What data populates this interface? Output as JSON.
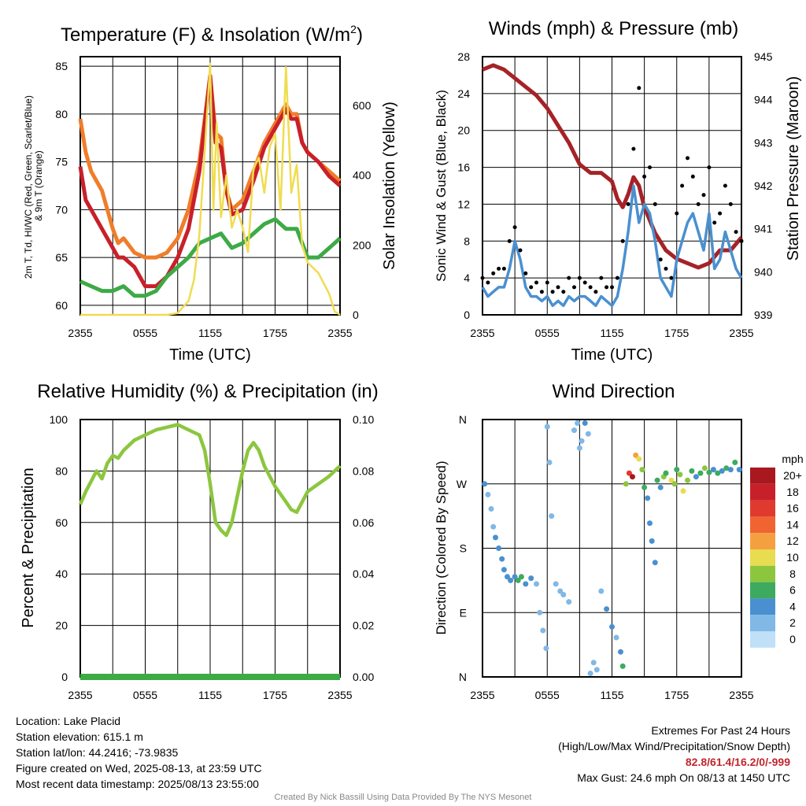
{
  "chart_data": [
    {
      "type": "line",
      "title": "Temperature (F) & Insolation (W/m²)",
      "xlabel": "Time (UTC)",
      "ylabel": "2m T, Td, HI/WC (Red, Green, Scarlet/Blue) & 9m T (Orange)",
      "y2label": "Solar Insolation (Yellow)",
      "xticks": [
        "2355",
        "0555",
        "1155",
        "1755",
        "2355"
      ],
      "ylim": [
        59,
        86
      ],
      "yticks": [
        60,
        65,
        70,
        75,
        80,
        85
      ],
      "y2lim": [
        0,
        740
      ],
      "y2ticks": [
        0,
        200,
        400,
        600
      ],
      "grid": true,
      "series": [
        {
          "color": "#f07d2a",
          "axis": "left",
          "x": [
            0,
            0.5,
            1,
            2,
            3,
            3.5,
            4,
            5,
            6,
            7,
            8,
            9,
            10,
            11,
            12,
            12.5,
            13,
            13.5,
            14,
            15,
            16,
            17,
            18,
            18.5,
            19,
            19.5,
            20,
            20.5,
            21,
            22,
            23,
            24
          ],
          "values": [
            79.5,
            76,
            74,
            72,
            68,
            66.5,
            67,
            65.5,
            65,
            65,
            65.5,
            67,
            70,
            75,
            84,
            78,
            77.5,
            72,
            70,
            71,
            74,
            77,
            79,
            80,
            81,
            80,
            80,
            77,
            76,
            75,
            74,
            73
          ]
        },
        {
          "color": "#c8202a",
          "axis": "left",
          "x": [
            0,
            0.5,
            1,
            2,
            3,
            3.5,
            4,
            5,
            6,
            7,
            8,
            9,
            10,
            11,
            12,
            12.5,
            13,
            13.5,
            14,
            15,
            16,
            17,
            18,
            18.5,
            19,
            19.5,
            20,
            20.5,
            21,
            22,
            23,
            24
          ],
          "values": [
            74.5,
            71,
            70,
            68,
            66,
            65,
            65,
            64,
            62,
            62,
            63,
            65,
            68,
            74,
            84,
            77,
            76.5,
            72,
            69.5,
            70,
            73,
            76.5,
            78.5,
            79.5,
            80.5,
            79.5,
            79.5,
            77,
            76,
            75,
            73.5,
            72.5
          ]
        },
        {
          "color": "#3daa46",
          "axis": "left",
          "x": [
            0,
            1,
            2,
            3,
            4,
            5,
            6,
            7,
            8,
            9,
            10,
            11,
            12,
            13,
            14,
            15,
            16,
            17,
            18,
            18.5,
            19,
            20,
            21,
            22,
            23,
            24
          ],
          "values": [
            62.5,
            62,
            61.5,
            61.5,
            62,
            61,
            61,
            61.5,
            63,
            64,
            65,
            66.5,
            67,
            67.5,
            66,
            66.5,
            67.5,
            68.5,
            69,
            68.5,
            68,
            68,
            65,
            65,
            66,
            67
          ]
        },
        {
          "color": "#f0dc50",
          "axis": "right",
          "x": [
            0,
            6,
            8,
            9,
            10,
            10.5,
            11,
            11.5,
            12,
            12.3,
            12.6,
            13,
            13.5,
            14,
            14.5,
            15,
            15.5,
            16,
            16.5,
            17,
            17.5,
            18,
            18.5,
            19,
            19.5,
            20,
            20.5,
            21,
            22,
            23,
            23.5,
            24
          ],
          "values": [
            0,
            0,
            0,
            5,
            40,
            100,
            230,
            470,
            720,
            300,
            550,
            280,
            400,
            250,
            300,
            250,
            180,
            420,
            450,
            350,
            480,
            520,
            300,
            710,
            350,
            430,
            200,
            150,
            120,
            60,
            10,
            0
          ]
        }
      ]
    },
    {
      "type": "line",
      "title": "Winds (mph) & Pressure (mb)",
      "xlabel": "Time (UTC)",
      "ylabel": "Sonic Wind & Gust (Blue, Black)",
      "y2label": "Station Pressure (Maroon)",
      "xticks": [
        "2355",
        "0555",
        "1155",
        "1755",
        "2355"
      ],
      "ylim": [
        0,
        28
      ],
      "yticks": [
        0,
        4,
        8,
        12,
        16,
        20,
        24,
        28
      ],
      "y2lim": [
        939,
        945
      ],
      "y2ticks": [
        939,
        940,
        941,
        942,
        943,
        944,
        945
      ],
      "grid": true,
      "series": [
        {
          "color": "#a52226",
          "axis": "right",
          "x": [
            0,
            1,
            2,
            3,
            4,
            5,
            6,
            7,
            8,
            9,
            10,
            11,
            12,
            12.5,
            13,
            13.5,
            14,
            14.5,
            15,
            16,
            17,
            18,
            19,
            20,
            21,
            22,
            23,
            24
          ],
          "values": [
            944.7,
            944.8,
            944.7,
            944.5,
            944.3,
            944.1,
            943.8,
            943.4,
            943.0,
            942.5,
            942.3,
            942.3,
            942.1,
            941.7,
            941.5,
            941.8,
            942.2,
            942.0,
            941.5,
            940.9,
            940.5,
            940.3,
            940.2,
            940.1,
            940.2,
            940.5,
            940.5,
            940.8
          ]
        },
        {
          "color": "#4a90d0",
          "axis": "left",
          "x": [
            0,
            0.5,
            1,
            1.5,
            2,
            2.5,
            3,
            3.5,
            4,
            4.5,
            5,
            5.5,
            6,
            6.5,
            7,
            7.5,
            8,
            8.5,
            9,
            9.5,
            10,
            10.5,
            11,
            11.5,
            12,
            12.5,
            13,
            13.5,
            14,
            14.5,
            15,
            15.5,
            16,
            16.5,
            17,
            17.5,
            18,
            18.5,
            19,
            19.5,
            20,
            20.5,
            21,
            21.5,
            22,
            22.5,
            23,
            23.5,
            24
          ],
          "values": [
            3,
            2,
            2.5,
            3,
            3,
            5,
            8,
            6,
            3,
            2,
            2,
            1.5,
            2,
            1,
            1.5,
            1,
            2,
            1.5,
            2,
            2,
            1.5,
            1,
            2,
            1.5,
            1,
            2,
            5,
            9,
            14,
            10,
            12,
            11,
            8,
            4,
            3,
            2,
            6,
            8,
            10,
            11,
            9,
            7,
            11,
            5,
            6,
            9,
            7,
            5,
            4
          ]
        },
        {
          "color": "#000000",
          "axis": "left",
          "style": "points",
          "x": [
            0,
            0.5,
            1,
            1.5,
            2,
            2.5,
            3,
            3.5,
            4,
            4.5,
            5,
            5.5,
            6,
            6.5,
            7,
            7.5,
            8,
            8.5,
            9,
            9.5,
            10,
            10.5,
            11,
            11.5,
            12,
            12.5,
            13,
            13.5,
            14,
            14.5,
            15,
            15.5,
            16,
            16.5,
            17,
            17.5,
            18,
            18.5,
            19,
            19.5,
            20,
            20.5,
            21,
            21.5,
            22,
            22.5,
            23,
            23.5,
            24
          ],
          "values": [
            4,
            3.5,
            4.5,
            5,
            5,
            8,
            9.5,
            7,
            4.5,
            3,
            3.5,
            2.5,
            3.5,
            2.5,
            3,
            2.5,
            4,
            3,
            4,
            3.5,
            3,
            2.5,
            4,
            3,
            3,
            4,
            8,
            12,
            18,
            24.6,
            15,
            16,
            12,
            6,
            5,
            4,
            11,
            14,
            17,
            15,
            12,
            13,
            16,
            10,
            11,
            14,
            12,
            9,
            8
          ]
        }
      ]
    },
    {
      "type": "line",
      "title": "Relative Humidity (%) & Precipitation (in)",
      "xlabel": "",
      "ylabel": "Percent & Precipitation",
      "xticks": [
        "2355",
        "0555",
        "1155",
        "1755",
        "2355"
      ],
      "ylim": [
        0,
        100
      ],
      "yticks": [
        0,
        20,
        40,
        60,
        80,
        100
      ],
      "y2lim": [
        0,
        0.1
      ],
      "y2ticks": [
        "0.00",
        "0.02",
        "0.04",
        "0.06",
        "0.08",
        "0.10"
      ],
      "grid": true,
      "series": [
        {
          "color": "#8cc63f",
          "axis": "left",
          "x": [
            0,
            0.5,
            1,
            1.5,
            2,
            2.5,
            3,
            3.5,
            4,
            5,
            6,
            7,
            8,
            9,
            10,
            11,
            11.5,
            12,
            12.5,
            13,
            13.5,
            14,
            14.5,
            15,
            15.5,
            16,
            16.5,
            17,
            18,
            19,
            19.5,
            20,
            21,
            22,
            23,
            24
          ],
          "values": [
            67,
            72,
            76,
            80,
            77,
            83,
            86,
            85,
            88,
            92,
            94,
            96,
            97,
            98,
            96,
            94,
            88,
            75,
            60,
            57,
            55,
            60,
            70,
            80,
            88,
            91,
            88,
            82,
            74,
            68,
            65,
            64,
            72,
            75,
            78,
            82
          ]
        },
        {
          "color": "#3daa46",
          "axis": "left",
          "x": [
            0,
            24
          ],
          "values": [
            0,
            0
          ]
        }
      ]
    },
    {
      "type": "scatter",
      "title": "Wind Direction",
      "xlabel": "",
      "ylabel": "Direction (Colored By Speed)",
      "xticks": [
        "2355",
        "0555",
        "1155",
        "1755",
        "2355"
      ],
      "yticks": [
        "N",
        "E",
        "S",
        "W",
        "N"
      ],
      "ylim": [
        0,
        360
      ],
      "grid": true,
      "legend": {
        "title": "mph",
        "position": "right",
        "labels": [
          "20+",
          "18",
          "16",
          "14",
          "12",
          "10",
          "8",
          "6",
          "4",
          "2",
          "0"
        ],
        "colors": [
          "#a8181e",
          "#c8202a",
          "#e03a2e",
          "#f06432",
          "#f5a040",
          "#e8dc50",
          "#8cc63f",
          "#3daa60",
          "#4a90d0",
          "#80b8e6",
          "#bfe0f6"
        ]
      },
      "points": [
        {
          "x": 0.2,
          "y": 270,
          "s": 3
        },
        {
          "x": 0.5,
          "y": 255,
          "s": 2
        },
        {
          "x": 0.8,
          "y": 235,
          "s": 2
        },
        {
          "x": 1,
          "y": 210,
          "s": 2
        },
        {
          "x": 1.2,
          "y": 195,
          "s": 3
        },
        {
          "x": 1.5,
          "y": 180,
          "s": 3
        },
        {
          "x": 1.8,
          "y": 165,
          "s": 4
        },
        {
          "x": 2,
          "y": 150,
          "s": 4
        },
        {
          "x": 2.3,
          "y": 140,
          "s": 4
        },
        {
          "x": 2.6,
          "y": 135,
          "s": 4
        },
        {
          "x": 3,
          "y": 140,
          "s": 4
        },
        {
          "x": 3.3,
          "y": 135,
          "s": 5
        },
        {
          "x": 3.6,
          "y": 140,
          "s": 5
        },
        {
          "x": 4,
          "y": 130,
          "s": 4
        },
        {
          "x": 4.5,
          "y": 138,
          "s": 3
        },
        {
          "x": 5,
          "y": 130,
          "s": 2
        },
        {
          "x": 5.3,
          "y": 90,
          "s": 2
        },
        {
          "x": 5.6,
          "y": 65,
          "s": 2
        },
        {
          "x": 5.9,
          "y": 40,
          "s": 2
        },
        {
          "x": 6,
          "y": 350,
          "s": 1
        },
        {
          "x": 6.2,
          "y": 300,
          "s": 1
        },
        {
          "x": 6.4,
          "y": 225,
          "s": 1
        },
        {
          "x": 6.8,
          "y": 130,
          "s": 2
        },
        {
          "x": 7.2,
          "y": 120,
          "s": 1
        },
        {
          "x": 7.5,
          "y": 115,
          "s": 2
        },
        {
          "x": 8,
          "y": 105,
          "s": 1
        },
        {
          "x": 8.5,
          "y": 345,
          "s": 2
        },
        {
          "x": 8.8,
          "y": 355,
          "s": 2
        },
        {
          "x": 9,
          "y": 320,
          "s": 2
        },
        {
          "x": 9.2,
          "y": 330,
          "s": 1
        },
        {
          "x": 9.5,
          "y": 355,
          "s": 3
        },
        {
          "x": 9.8,
          "y": 340,
          "s": 2
        },
        {
          "x": 10,
          "y": 5,
          "s": 1
        },
        {
          "x": 10.3,
          "y": 20,
          "s": 2
        },
        {
          "x": 10.6,
          "y": 10,
          "s": 1
        },
        {
          "x": 11,
          "y": 120,
          "s": 2
        },
        {
          "x": 11.5,
          "y": 95,
          "s": 3
        },
        {
          "x": 12,
          "y": 70,
          "s": 3
        },
        {
          "x": 12.4,
          "y": 55,
          "s": 2
        },
        {
          "x": 12.8,
          "y": 35,
          "s": 3
        },
        {
          "x": 13,
          "y": 15,
          "s": 6
        },
        {
          "x": 13.3,
          "y": 270,
          "s": 8
        },
        {
          "x": 13.6,
          "y": 285,
          "s": 16
        },
        {
          "x": 13.9,
          "y": 280,
          "s": 20
        },
        {
          "x": 14.2,
          "y": 310,
          "s": 12
        },
        {
          "x": 14.5,
          "y": 305,
          "s": 10
        },
        {
          "x": 14.8,
          "y": 290,
          "s": 8
        },
        {
          "x": 15,
          "y": 265,
          "s": 6
        },
        {
          "x": 15.3,
          "y": 250,
          "s": 4
        },
        {
          "x": 15.5,
          "y": 215,
          "s": 3
        },
        {
          "x": 15.7,
          "y": 190,
          "s": 3
        },
        {
          "x": 16,
          "y": 160,
          "s": 4
        },
        {
          "x": 16.2,
          "y": 275,
          "s": 6
        },
        {
          "x": 16.5,
          "y": 265,
          "s": 4
        },
        {
          "x": 16.8,
          "y": 280,
          "s": 8
        },
        {
          "x": 17,
          "y": 285,
          "s": 6
        },
        {
          "x": 17.5,
          "y": 275,
          "s": 10
        },
        {
          "x": 17.8,
          "y": 270,
          "s": 8
        },
        {
          "x": 18,
          "y": 290,
          "s": 6
        },
        {
          "x": 18.3,
          "y": 283,
          "s": 8
        },
        {
          "x": 18.6,
          "y": 260,
          "s": 10
        },
        {
          "x": 19,
          "y": 275,
          "s": 8
        },
        {
          "x": 19.4,
          "y": 288,
          "s": 6
        },
        {
          "x": 19.8,
          "y": 280,
          "s": 4
        },
        {
          "x": 20.2,
          "y": 285,
          "s": 6
        },
        {
          "x": 20.6,
          "y": 292,
          "s": 8
        },
        {
          "x": 21,
          "y": 286,
          "s": 6
        },
        {
          "x": 21.4,
          "y": 290,
          "s": 4
        },
        {
          "x": 21.8,
          "y": 285,
          "s": 6
        },
        {
          "x": 22.2,
          "y": 288,
          "s": 4
        },
        {
          "x": 22.6,
          "y": 292,
          "s": 6
        },
        {
          "x": 23,
          "y": 290,
          "s": 4
        },
        {
          "x": 23.4,
          "y": 300,
          "s": 5
        },
        {
          "x": 23.8,
          "y": 290,
          "s": 4
        }
      ]
    }
  ],
  "footer": {
    "location": "Location: Lake Placid",
    "elevation": "Station elevation: 615.1 m",
    "latlon": "Station lat/lon: 44.2416; -73.9835",
    "created": "Figure created on Wed, 2025-08-13, at 23:59 UTC",
    "recent": "Most recent data timestamp: 2025/08/13 23:55:00",
    "extremes_title": "Extremes For Past 24 Hours",
    "extremes_desc": "(High/Low/Max Wind/Precipitation/Snow Depth)",
    "extremes_values": "82.8/61.4/16.2/0/-999",
    "max_gust": "Max Gust: 24.6 mph On 08/13 at 1450 UTC",
    "credit": "Created By Nick Bassill Using Data Provided By The NYS Mesonet"
  }
}
